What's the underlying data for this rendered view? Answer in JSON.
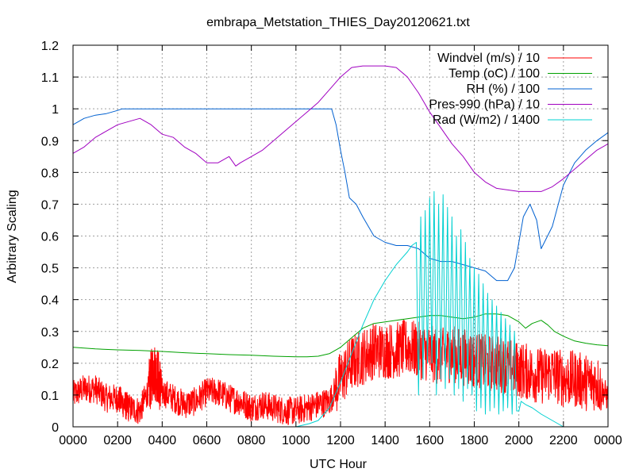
{
  "chart_data": {
    "type": "line",
    "title": "embrapa_Metstation_THIES_Day20120621.txt",
    "xlabel": "UTC Hour",
    "ylabel": "Arbitrary Scaling",
    "xlim": [
      0,
      24
    ],
    "ylim": [
      0,
      1.2
    ],
    "grid": true,
    "legend_position": "top-right",
    "x_ticks": [
      0,
      2,
      4,
      6,
      8,
      10,
      12,
      14,
      16,
      18,
      20,
      22,
      24
    ],
    "x_tick_labels": [
      "0000",
      "0200",
      "0400",
      "0600",
      "0800",
      "1000",
      "1200",
      "1400",
      "1600",
      "1800",
      "2000",
      "2200",
      "0000"
    ],
    "y_ticks": [
      0,
      0.1,
      0.2,
      0.3,
      0.4,
      0.5,
      0.6,
      0.7,
      0.8,
      0.9,
      1.0,
      1.1,
      1.2
    ],
    "y_tick_labels": [
      "0",
      "0.1",
      "0.2",
      "0.3",
      "0.4",
      "0.5",
      "0.6",
      "0.7",
      "0.8",
      "0.9",
      "1",
      "1.1",
      "1.2"
    ],
    "series": [
      {
        "name": "Windvel (m/s) / 10",
        "color": "#ff0000",
        "noisy": true,
        "x": [
          0,
          0.5,
          1,
          1.5,
          2,
          2.3,
          2.5,
          3,
          3.4,
          3.6,
          3.8,
          4,
          4.5,
          5,
          5.5,
          6,
          6.5,
          7,
          7.5,
          8,
          8.5,
          9,
          9.5,
          10,
          10.5,
          11,
          11.5,
          12,
          12.5,
          13,
          13.5,
          14,
          14.5,
          15,
          15.5,
          16,
          16.5,
          17,
          17.5,
          18,
          18.5,
          19,
          19.5,
          20,
          20.5,
          21,
          21.5,
          22,
          22.5,
          23,
          23.5,
          24
        ],
        "y": [
          0.1,
          0.12,
          0.12,
          0.09,
          0.09,
          0.07,
          0.06,
          0.05,
          0.12,
          0.18,
          0.16,
          0.11,
          0.09,
          0.07,
          0.08,
          0.11,
          0.11,
          0.09,
          0.08,
          0.06,
          0.07,
          0.06,
          0.05,
          0.05,
          0.06,
          0.07,
          0.08,
          0.15,
          0.2,
          0.22,
          0.24,
          0.24,
          0.24,
          0.25,
          0.24,
          0.23,
          0.22,
          0.23,
          0.22,
          0.21,
          0.2,
          0.2,
          0.19,
          0.18,
          0.17,
          0.16,
          0.17,
          0.15,
          0.15,
          0.14,
          0.14,
          0.09
        ]
      },
      {
        "name": "Temp (oC) / 100",
        "color": "#00a000",
        "noisy": false,
        "x": [
          0,
          1,
          2,
          3,
          4,
          5,
          6,
          7,
          8,
          9,
          10,
          10.5,
          11,
          11.5,
          12,
          12.5,
          13,
          13.5,
          14,
          14.5,
          15,
          15.5,
          16,
          16.5,
          17,
          17.5,
          18,
          18.5,
          19,
          19.5,
          20,
          20.3,
          20.6,
          21,
          21.3,
          21.6,
          22,
          22.5,
          23,
          23.5,
          24
        ],
        "y": [
          0.25,
          0.245,
          0.242,
          0.24,
          0.237,
          0.233,
          0.23,
          0.227,
          0.225,
          0.222,
          0.22,
          0.22,
          0.222,
          0.23,
          0.25,
          0.28,
          0.31,
          0.325,
          0.33,
          0.335,
          0.34,
          0.345,
          0.35,
          0.35,
          0.345,
          0.34,
          0.345,
          0.355,
          0.355,
          0.35,
          0.33,
          0.31,
          0.325,
          0.335,
          0.32,
          0.3,
          0.285,
          0.27,
          0.263,
          0.258,
          0.255
        ]
      },
      {
        "name": "RH (%) / 100",
        "color": "#0060d0",
        "noisy": false,
        "x": [
          0,
          0.5,
          1,
          1.5,
          2,
          2.2,
          2.5,
          3,
          4,
          5,
          6,
          7,
          8,
          9,
          10,
          11,
          11.6,
          11.8,
          12,
          12.2,
          12.4,
          12.7,
          13,
          13.5,
          14,
          14.5,
          15,
          15.5,
          16,
          16.5,
          17,
          17.5,
          18,
          18.5,
          19,
          19.5,
          19.8,
          20,
          20.2,
          20.5,
          20.8,
          21,
          21.5,
          22,
          22.5,
          23,
          23.5,
          24
        ],
        "y": [
          0.95,
          0.97,
          0.98,
          0.985,
          0.995,
          1.0,
          1.0,
          1.0,
          1.0,
          1.0,
          1.0,
          1.0,
          1.0,
          1.0,
          1.0,
          1.0,
          1.0,
          0.95,
          0.87,
          0.8,
          0.72,
          0.7,
          0.66,
          0.6,
          0.58,
          0.57,
          0.57,
          0.56,
          0.53,
          0.52,
          0.52,
          0.51,
          0.5,
          0.49,
          0.46,
          0.46,
          0.5,
          0.58,
          0.66,
          0.7,
          0.65,
          0.56,
          0.63,
          0.76,
          0.83,
          0.87,
          0.9,
          0.925
        ]
      },
      {
        "name": "Pres-990 (hPa) / 10",
        "color": "#a000c0",
        "noisy": false,
        "x": [
          0,
          0.5,
          1,
          1.5,
          2,
          2.5,
          3,
          3.5,
          4,
          4.5,
          5,
          5.5,
          6,
          6.5,
          7,
          7.3,
          7.5,
          8,
          8.5,
          9,
          9.5,
          10,
          10.5,
          11,
          11.5,
          12,
          12.5,
          13,
          13.5,
          14,
          14.5,
          15,
          15.5,
          16,
          16.5,
          17,
          17.5,
          18,
          18.5,
          19,
          19.5,
          20,
          20.5,
          21,
          21.5,
          22,
          22.5,
          23,
          23.5,
          24
        ],
        "y": [
          0.86,
          0.88,
          0.91,
          0.93,
          0.95,
          0.96,
          0.97,
          0.95,
          0.92,
          0.91,
          0.88,
          0.86,
          0.83,
          0.83,
          0.85,
          0.82,
          0.83,
          0.85,
          0.87,
          0.9,
          0.93,
          0.96,
          0.99,
          1.02,
          1.06,
          1.1,
          1.13,
          1.135,
          1.135,
          1.135,
          1.13,
          1.1,
          1.05,
          0.99,
          0.94,
          0.89,
          0.85,
          0.8,
          0.77,
          0.75,
          0.745,
          0.74,
          0.74,
          0.74,
          0.755,
          0.78,
          0.81,
          0.84,
          0.87,
          0.89
        ]
      },
      {
        "name": "Rad (W/m2) / 1400",
        "color": "#00d0d0",
        "noisy": false,
        "x": [
          0,
          10,
          10.3,
          10.6,
          11,
          11.5,
          12,
          12.5,
          13,
          13.5,
          14,
          14.5,
          15,
          15.2,
          15.4,
          15.5,
          15.6,
          15.7,
          15.8,
          15.9,
          16,
          16.1,
          16.2,
          16.3,
          16.4,
          16.5,
          16.6,
          16.7,
          16.8,
          16.9,
          17,
          17.1,
          17.2,
          17.3,
          17.4,
          17.5,
          17.6,
          17.7,
          17.8,
          17.9,
          18,
          18.1,
          18.2,
          18.3,
          18.4,
          18.5,
          18.6,
          18.7,
          18.8,
          18.9,
          19,
          19.1,
          19.2,
          19.3,
          19.4,
          19.5,
          19.6,
          19.7,
          19.8,
          19.9,
          20,
          20.1,
          20.3,
          20.6,
          21,
          21.5,
          22,
          24
        ],
        "y": [
          0,
          0,
          0.005,
          0.01,
          0.02,
          0.06,
          0.14,
          0.23,
          0.32,
          0.4,
          0.46,
          0.51,
          0.55,
          0.57,
          0.58,
          0.1,
          0.66,
          0.15,
          0.68,
          0.2,
          0.72,
          0.2,
          0.74,
          0.1,
          0.7,
          0.15,
          0.73,
          0.12,
          0.69,
          0.15,
          0.66,
          0.1,
          0.6,
          0.12,
          0.62,
          0.08,
          0.58,
          0.12,
          0.53,
          0.1,
          0.5,
          0.05,
          0.48,
          0.06,
          0.45,
          0.04,
          0.42,
          0.05,
          0.4,
          0.06,
          0.38,
          0.04,
          0.36,
          0.05,
          0.34,
          0.06,
          0.32,
          0.04,
          0.3,
          0.05,
          0.05,
          0.08,
          0.07,
          0.06,
          0.04,
          0.02,
          0,
          0
        ]
      }
    ]
  }
}
